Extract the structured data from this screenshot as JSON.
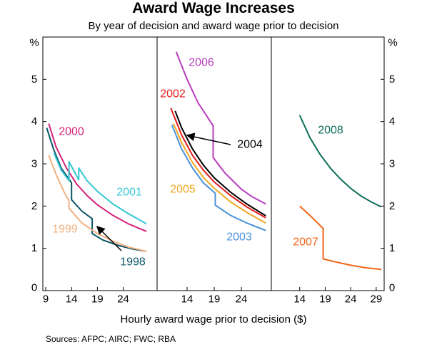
{
  "title": "Award Wage Increases",
  "subtitle": "By year of decision and award wage prior to decision",
  "xlabel": "Hourly award wage prior to decision ($)",
  "sources": "Sources:   AFPC; AIRC; FWC; RBA",
  "chart_data": {
    "type": "line",
    "title": "Award Wage Increases",
    "subtitle": "By year of decision and award wage prior to decision",
    "xlabel": "Hourly award wage prior to decision ($)",
    "ylabel_left": "%",
    "ylabel_right": "%",
    "ylim": [
      0,
      6
    ],
    "y_ticks": [
      0,
      1,
      2,
      3,
      4,
      5
    ],
    "grid": false,
    "legend": "inline labels",
    "colors": {
      "1998": "#0b5566",
      "1999": "#f2b07e",
      "2000": "#d6217a",
      "2001": "#35c6d3",
      "2002": "#e21e1e",
      "2003": "#4a90d9",
      "2004": "#000000",
      "2005": "#f0a820",
      "2006": "#b83cbc",
      "2007": "#f06414",
      "2008": "#0c6e5a"
    },
    "panels": [
      {
        "xlim": [
          9,
          30
        ],
        "x_ticks": [
          9,
          14,
          19,
          24
        ],
        "series": [
          {
            "name": "1998",
            "label_color": "#0b5566",
            "x": [
              9.2,
              10.5,
              12,
              14,
              14,
              16,
              18,
              18,
              20,
              23,
              26,
              28.5
            ],
            "y": [
              3.85,
              3.35,
              2.9,
              2.55,
              2.15,
              1.88,
              1.7,
              1.35,
              1.2,
              1.07,
              0.98,
              0.93
            ]
          },
          {
            "name": "1999",
            "label_color": "#f2b07e",
            "x": [
              9.6,
              11,
              12.5,
              13.5,
              13.5,
              16,
              19,
              22,
              25,
              28.5
            ],
            "y": [
              3.2,
              2.75,
              2.35,
              2.12,
              1.95,
              1.6,
              1.35,
              1.17,
              1.03,
              0.93
            ]
          },
          {
            "name": "2000",
            "label_color": "#d6217a",
            "x": [
              9.6,
              11,
              13,
              15,
              17,
              19,
              22,
              25,
              28.5
            ],
            "y": [
              3.95,
              3.4,
              2.9,
              2.52,
              2.25,
              2.03,
              1.78,
              1.58,
              1.4
            ]
          },
          {
            "name": "2001",
            "label_color": "#35c6d3",
            "x": [
              10.6,
              12,
              13.5,
              13.5,
              15.4,
              15.4,
              17,
              19,
              22,
              25,
              28.5
            ],
            "y": [
              3.25,
              2.85,
              2.6,
              3.05,
              2.62,
              2.9,
              2.6,
              2.35,
              2.05,
              1.82,
              1.58
            ]
          }
        ]
      },
      {
        "xlim": [
          9,
          29
        ],
        "x_ticks": [
          14,
          19,
          24
        ],
        "series": [
          {
            "name": "2006",
            "label_color": "#b83cbc",
            "x": [
              12,
              14,
              16,
              18.8,
              18.8,
              21,
              24,
              26,
              28.5
            ],
            "y": [
              5.65,
              5.0,
              4.45,
              3.9,
              3.15,
              2.78,
              2.4,
              2.22,
              2.05
            ]
          },
          {
            "name": "2002",
            "label_color": "#e21e1e",
            "x": [
              11,
              13,
              15,
              17,
              19,
              22,
              25,
              28.5
            ],
            "y": [
              4.32,
              3.68,
              3.2,
              2.85,
              2.57,
              2.25,
              1.98,
              1.72
            ]
          },
          {
            "name": "2004",
            "label_color": "#000000",
            "x": [
              11.8,
              13,
              15,
              17,
              19,
              22,
              25,
              28.5
            ],
            "y": [
              4.25,
              3.85,
              3.35,
              2.97,
              2.67,
              2.33,
              2.05,
              1.77
            ]
          },
          {
            "name": "2005",
            "label_color": "#f0a820",
            "x": [
              11.5,
              13,
              15,
              17,
              19,
              22,
              25,
              28.5
            ],
            "y": [
              3.95,
              3.5,
              3.03,
              2.68,
              2.42,
              2.1,
              1.85,
              1.6
            ]
          },
          {
            "name": "2003",
            "label_color": "#4a90d9",
            "x": [
              11.2,
              13,
              15,
              17,
              19.2,
              19.2,
              22,
              25,
              28.5
            ],
            "y": [
              3.92,
              3.35,
              2.9,
              2.55,
              2.3,
              2.02,
              1.78,
              1.6,
              1.42
            ]
          }
        ]
      },
      {
        "xlim": [
          9,
          30
        ],
        "x_ticks": [
          14,
          19,
          24,
          29
        ],
        "series": [
          {
            "name": "2008",
            "label_color": "#0c6e5a",
            "x": [
              14,
              16,
              18,
              20,
              22,
              24,
              26,
              28,
              30
            ],
            "y": [
              4.15,
              3.62,
              3.22,
              2.9,
              2.64,
              2.42,
              2.24,
              2.1,
              1.98
            ]
          },
          {
            "name": "2007",
            "label_color": "#f06414",
            "x": [
              14,
              16,
              18.6,
              18.6,
              21,
              24,
              27,
              30
            ],
            "y": [
              2.0,
              1.78,
              1.47,
              0.75,
              0.68,
              0.6,
              0.54,
              0.5
            ]
          }
        ]
      }
    ]
  }
}
